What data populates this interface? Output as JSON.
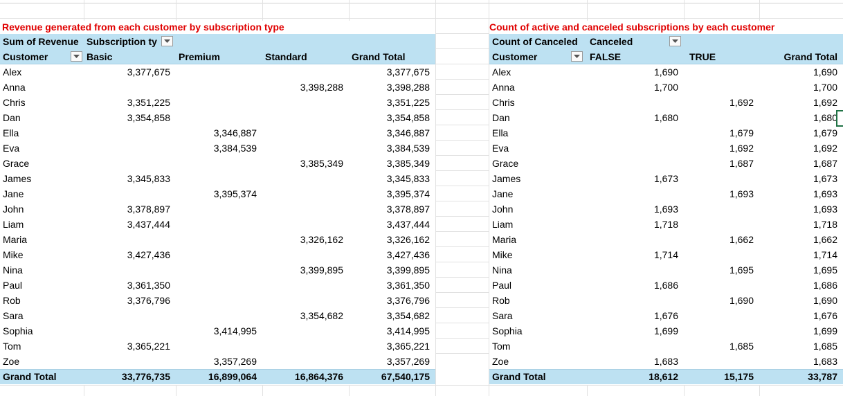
{
  "left_pivot": {
    "title": "Revenue generated from each customer by subscription type",
    "measure_label": "Sum of Revenue",
    "column_field_label": "Subscription ty",
    "row_field_label": "Customer",
    "columns": [
      "Basic",
      "Premium",
      "Standard",
      "Grand Total"
    ],
    "rows": [
      {
        "customer": "Alex",
        "basic": "3,377,675",
        "premium": "",
        "standard": "",
        "total": "3,377,675"
      },
      {
        "customer": "Anna",
        "basic": "",
        "premium": "",
        "standard": "3,398,288",
        "total": "3,398,288"
      },
      {
        "customer": "Chris",
        "basic": "3,351,225",
        "premium": "",
        "standard": "",
        "total": "3,351,225"
      },
      {
        "customer": "Dan",
        "basic": "3,354,858",
        "premium": "",
        "standard": "",
        "total": "3,354,858"
      },
      {
        "customer": "Ella",
        "basic": "",
        "premium": "3,346,887",
        "standard": "",
        "total": "3,346,887"
      },
      {
        "customer": "Eva",
        "basic": "",
        "premium": "3,384,539",
        "standard": "",
        "total": "3,384,539"
      },
      {
        "customer": "Grace",
        "basic": "",
        "premium": "",
        "standard": "3,385,349",
        "total": "3,385,349"
      },
      {
        "customer": "James",
        "basic": "3,345,833",
        "premium": "",
        "standard": "",
        "total": "3,345,833"
      },
      {
        "customer": "Jane",
        "basic": "",
        "premium": "3,395,374",
        "standard": "",
        "total": "3,395,374"
      },
      {
        "customer": "John",
        "basic": "3,378,897",
        "premium": "",
        "standard": "",
        "total": "3,378,897"
      },
      {
        "customer": "Liam",
        "basic": "3,437,444",
        "premium": "",
        "standard": "",
        "total": "3,437,444"
      },
      {
        "customer": "Maria",
        "basic": "",
        "premium": "",
        "standard": "3,326,162",
        "total": "3,326,162"
      },
      {
        "customer": "Mike",
        "basic": "3,427,436",
        "premium": "",
        "standard": "",
        "total": "3,427,436"
      },
      {
        "customer": "Nina",
        "basic": "",
        "premium": "",
        "standard": "3,399,895",
        "total": "3,399,895"
      },
      {
        "customer": "Paul",
        "basic": "3,361,350",
        "premium": "",
        "standard": "",
        "total": "3,361,350"
      },
      {
        "customer": "Rob",
        "basic": "3,376,796",
        "premium": "",
        "standard": "",
        "total": "3,376,796"
      },
      {
        "customer": "Sara",
        "basic": "",
        "premium": "",
        "standard": "3,354,682",
        "total": "3,354,682"
      },
      {
        "customer": "Sophia",
        "basic": "",
        "premium": "3,414,995",
        "standard": "",
        "total": "3,414,995"
      },
      {
        "customer": "Tom",
        "basic": "3,365,221",
        "premium": "",
        "standard": "",
        "total": "3,365,221"
      },
      {
        "customer": "Zoe",
        "basic": "",
        "premium": "3,357,269",
        "standard": "",
        "total": "3,357,269"
      }
    ],
    "grand_total": {
      "label": "Grand Total",
      "basic": "33,776,735",
      "premium": "16,899,064",
      "standard": "16,864,376",
      "total": "67,540,175"
    }
  },
  "right_pivot": {
    "title": "Count of active and canceled subscriptions by each customer",
    "measure_label": "Count of Canceled",
    "column_field_label": "Canceled",
    "row_field_label": "Customer",
    "columns": [
      "FALSE",
      "TRUE",
      "Grand Total"
    ],
    "rows": [
      {
        "customer": "Alex",
        "false": "1,690",
        "true": "",
        "total": "1,690"
      },
      {
        "customer": "Anna",
        "false": "1,700",
        "true": "",
        "total": "1,700"
      },
      {
        "customer": "Chris",
        "false": "",
        "true": "1,692",
        "total": "1,692"
      },
      {
        "customer": "Dan",
        "false": "1,680",
        "true": "",
        "total": "1,680"
      },
      {
        "customer": "Ella",
        "false": "",
        "true": "1,679",
        "total": "1,679"
      },
      {
        "customer": "Eva",
        "false": "",
        "true": "1,692",
        "total": "1,692"
      },
      {
        "customer": "Grace",
        "false": "",
        "true": "1,687",
        "total": "1,687"
      },
      {
        "customer": "James",
        "false": "1,673",
        "true": "",
        "total": "1,673"
      },
      {
        "customer": "Jane",
        "false": "",
        "true": "1,693",
        "total": "1,693"
      },
      {
        "customer": "John",
        "false": "1,693",
        "true": "",
        "total": "1,693"
      },
      {
        "customer": "Liam",
        "false": "1,718",
        "true": "",
        "total": "1,718"
      },
      {
        "customer": "Maria",
        "false": "",
        "true": "1,662",
        "total": "1,662"
      },
      {
        "customer": "Mike",
        "false": "1,714",
        "true": "",
        "total": "1,714"
      },
      {
        "customer": "Nina",
        "false": "",
        "true": "1,695",
        "total": "1,695"
      },
      {
        "customer": "Paul",
        "false": "1,686",
        "true": "",
        "total": "1,686"
      },
      {
        "customer": "Rob",
        "false": "",
        "true": "1,690",
        "total": "1,690"
      },
      {
        "customer": "Sara",
        "false": "1,676",
        "true": "",
        "total": "1,676"
      },
      {
        "customer": "Sophia",
        "false": "1,699",
        "true": "",
        "total": "1,699"
      },
      {
        "customer": "Tom",
        "false": "",
        "true": "1,685",
        "total": "1,685"
      },
      {
        "customer": "Zoe",
        "false": "1,683",
        "true": "",
        "total": "1,683"
      }
    ],
    "grand_total": {
      "label": "Grand Total",
      "false": "18,612",
      "true": "15,175",
      "total": "33,787"
    }
  },
  "icons": {
    "filter": "filter-dropdown-icon"
  },
  "colors": {
    "title": "#e00000",
    "pivot_header_band": "#bde1f2",
    "selection": "#1f7244",
    "gridline": "#e1e1e1"
  }
}
